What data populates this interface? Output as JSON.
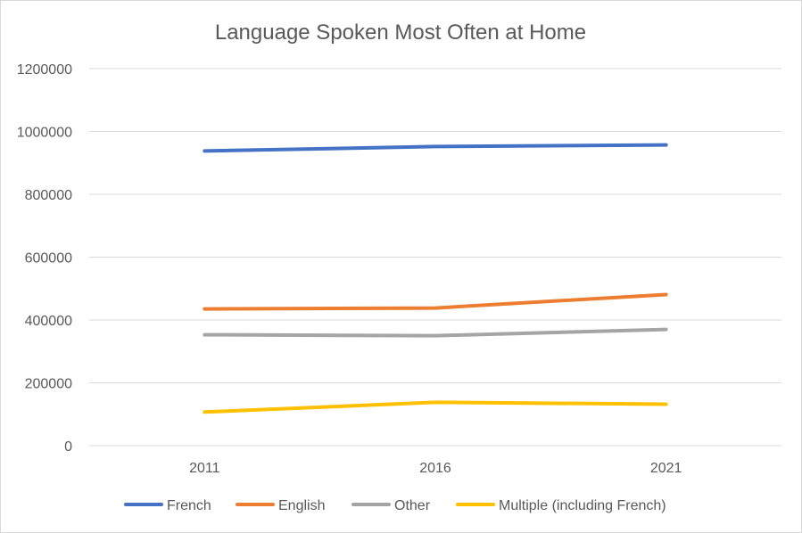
{
  "chart_data": {
    "type": "line",
    "title": "Language Spoken Most Often at Home",
    "categories": [
      "2011",
      "2016",
      "2021"
    ],
    "ylim": [
      0,
      1200000
    ],
    "yticks": [
      "0",
      "200000",
      "400000",
      "600000",
      "800000",
      "1000000",
      "1200000"
    ],
    "grid": true,
    "legend_position": "bottom",
    "series": [
      {
        "name": "French",
        "color": "#4472c4",
        "values": [
          938000,
          952000,
          957000
        ]
      },
      {
        "name": "English",
        "color": "#ed7d31",
        "values": [
          435000,
          438000,
          481000
        ]
      },
      {
        "name": "Other",
        "color": "#a5a5a5",
        "values": [
          353000,
          350000,
          370000
        ]
      },
      {
        "name": "Multiple (including French)",
        "color": "#ffc000",
        "values": [
          107000,
          138000,
          132000
        ]
      }
    ]
  }
}
